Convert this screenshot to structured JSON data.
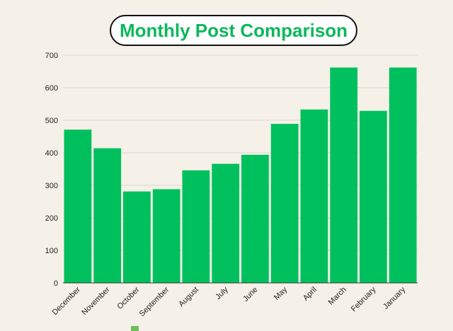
{
  "chart_data": {
    "type": "bar",
    "title": "Monthly Post Comparison",
    "categories": [
      "December",
      "November",
      "October",
      "September",
      "August",
      "July",
      "June",
      "May",
      "April",
      "March",
      "February",
      "January"
    ],
    "values": [
      471,
      414,
      281,
      288,
      346,
      366,
      394,
      489,
      533,
      662,
      529,
      662
    ],
    "ylim": [
      0,
      700
    ],
    "yticks": [
      0,
      100,
      200,
      300,
      400,
      500,
      600,
      700
    ],
    "xlabel": "",
    "ylabel": "",
    "grid": true,
    "bar_color": "#00c05e",
    "legend_position": "bottom"
  }
}
